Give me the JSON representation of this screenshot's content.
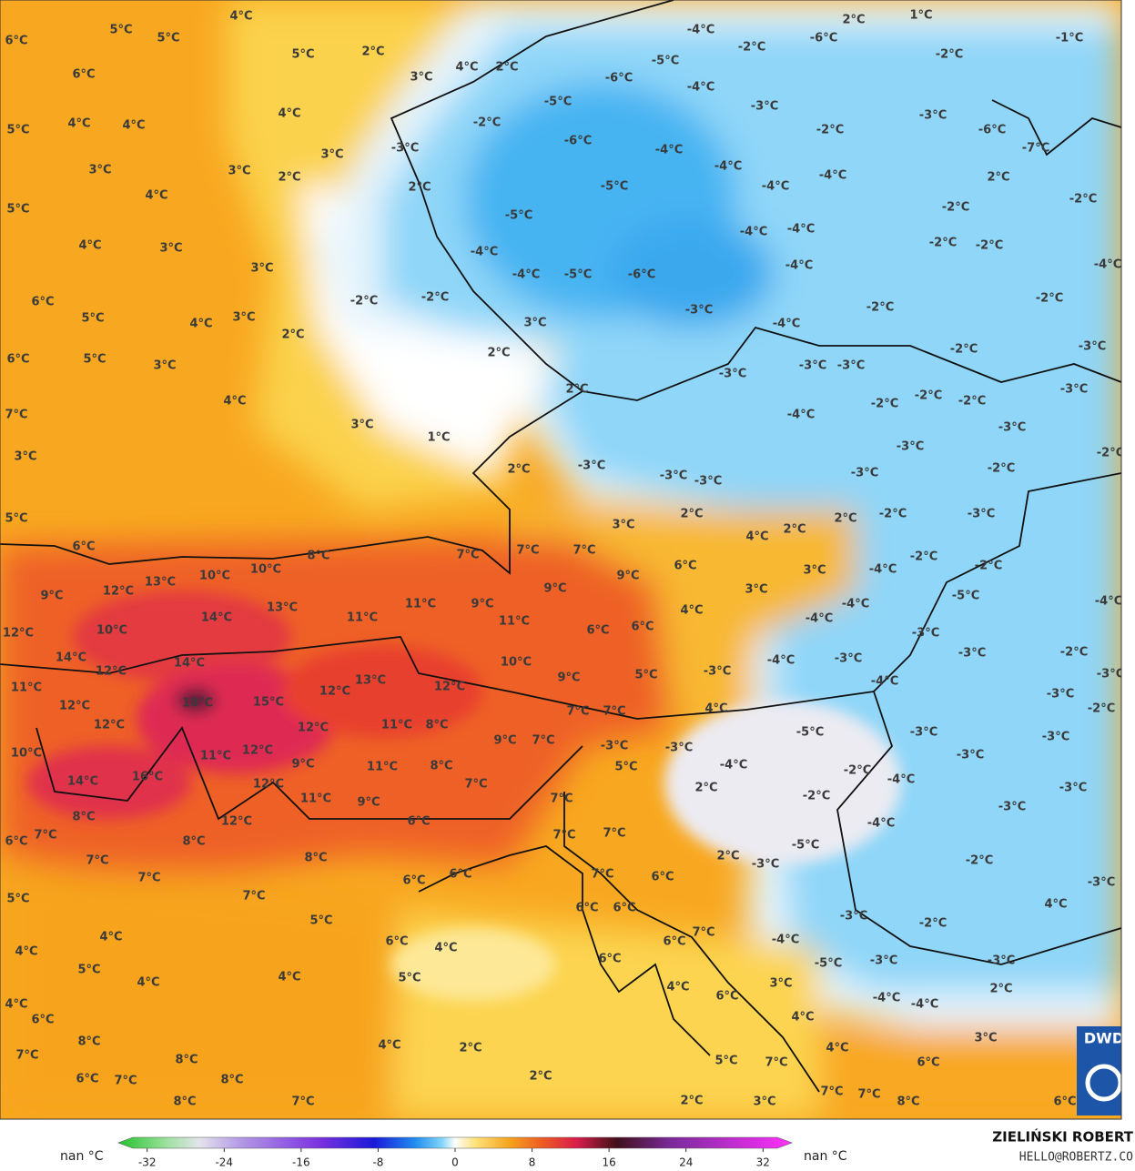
{
  "map": {
    "labels": [
      "4°C",
      "5°C",
      "5°C",
      "6°C",
      "6°C",
      "4°C",
      "5°C",
      "2°C",
      "3°C",
      "4°C",
      "2°C",
      "2°C",
      "1°C",
      "-1°C",
      "-4°C",
      "-2°C",
      "-6°C",
      "-2°C",
      "-5°C",
      "-6°C",
      "-5°C",
      "-4°C",
      "-3°C",
      "-2°C",
      "-3°C",
      "-6°C",
      "-4°C",
      "-4°C",
      "-2°C",
      "-3°C",
      "-6°C",
      "-7°C",
      "2°C",
      "-5°C",
      "-5°C",
      "-4°C",
      "-4°C",
      "-2°C",
      "-2°C",
      "-4°C",
      "-4°C",
      "-5°C",
      "-6°C",
      "-4°C",
      "-4°C",
      "-4°C",
      "-2°C",
      "-2°C",
      "-4°C",
      "-2°C",
      "-2°C",
      "3°C",
      "-3°C",
      "-4°C",
      "-2°C",
      "-2°C",
      "2°C",
      "2°C",
      "3°C",
      "4°C",
      "5°C",
      "6°C",
      "4°C",
      "4°C",
      "5°C",
      "3°C",
      "3°C",
      "2°C",
      "4°C",
      "3°C",
      "3°C",
      "4°C",
      "5°C",
      "2°C",
      "3°C",
      "-3°C",
      "-3°C",
      "-3°C",
      "-2°C",
      "-3°C",
      "2°C",
      "1°C",
      "3°C",
      "4°C",
      "3°C",
      "5°C",
      "6°C",
      "7°C",
      "3°C",
      "5°C",
      "-2°C",
      "-2°C",
      "-2°C",
      "-3°C",
      "-4°C",
      "-3°C",
      "-3°C",
      "-2°C",
      "2°C",
      "-3°C",
      "-3°C",
      "-3°C",
      "-3°C",
      "-2°C",
      "-3°C",
      "3°C",
      "2°C",
      "4°C",
      "2°C",
      "2°C",
      "-2°C",
      "6°C",
      "8°C",
      "7°C",
      "7°C",
      "7°C",
      "6°C",
      "3°C",
      "-2°C",
      "-2°C",
      "-4°C",
      "13°C",
      "10°C",
      "10°C",
      "9°C",
      "9°C",
      "3°C",
      "-5°C",
      "-4°C",
      "12°C",
      "9°C",
      "13°C",
      "11°C",
      "9°C",
      "4°C",
      "-4°C",
      "-4°C",
      "14°C",
      "11°C",
      "11°C",
      "6°C",
      "6°C",
      "12°C",
      "10°C",
      "-3°C",
      "14°C",
      "14°C",
      "10°C",
      "-4°C",
      "-3°C",
      "-3°C",
      "-2°C",
      "12°C",
      "13°C",
      "12°C",
      "9°C",
      "5°C",
      "-3°C",
      "-4°C",
      "-3°C",
      "11°C",
      "18°C",
      "15°C",
      "12°C",
      "-3°C",
      "12°C",
      "7°C",
      "7°C",
      "4°C",
      "-2°C",
      "12°C",
      "12°C",
      "11°C",
      "8°C",
      "-5°C",
      "-3°C",
      "-3°C",
      "10°C",
      "11°C",
      "12°C",
      "9°C",
      "7°C",
      "-3°C",
      "-3°C",
      "-3°C",
      "9°C",
      "11°C",
      "8°C",
      "5°C",
      "-4°C",
      "-2°C",
      "-4°C",
      "16°C",
      "14°C",
      "12°C",
      "7°C",
      "2°C",
      "-3°C",
      "11°C",
      "9°C",
      "7°C",
      "-2°C",
      "-3°C",
      "8°C",
      "12°C",
      "6°C",
      "7°C",
      "8°C",
      "7°C",
      "7°C",
      "-5°C",
      "-4°C",
      "6°C",
      "7°C",
      "8°C",
      "2°C",
      "-3°C",
      "-2°C",
      "7°C",
      "6°C",
      "6°C",
      "6°C",
      "7°C",
      "-3°C",
      "7°C",
      "5°C",
      "6°C",
      "6°C",
      "4°C",
      "5°C",
      "-3°C",
      "-2°C",
      "4°C",
      "6°C",
      "4°C",
      "6°C",
      "7°C",
      "-4°C",
      "4°C",
      "6°C",
      "-5°C",
      "-3°C",
      "-3°C",
      "5°C",
      "4°C",
      "5°C",
      "4°C",
      "4°C",
      "3°C",
      "2°C",
      "4°C",
      "6°C",
      "-4°C",
      "-4°C",
      "6°C",
      "4°C",
      "8°C",
      "4°C",
      "2°C",
      "3°C",
      "4°C",
      "7°C",
      "8°C",
      "5°C",
      "7°C",
      "6°C",
      "2°C",
      "6°C",
      "7°C",
      "8°C",
      "7°C",
      "7°C",
      "8°C",
      "6°C",
      "8°C",
      "7°C",
      "2°C",
      "3°C"
    ]
  },
  "colorbar": {
    "lim": [
      -35,
      35
    ],
    "ticks": [
      -32,
      -24,
      -16,
      -8,
      0,
      8,
      16,
      24,
      32
    ],
    "left_label": "nan °C",
    "right_label": "nan °C"
  },
  "credit": {
    "name": "ZIELIŃSKI ROBERT",
    "email": "HELLO@ROBERTZ.CO",
    "logo": "DWD"
  }
}
